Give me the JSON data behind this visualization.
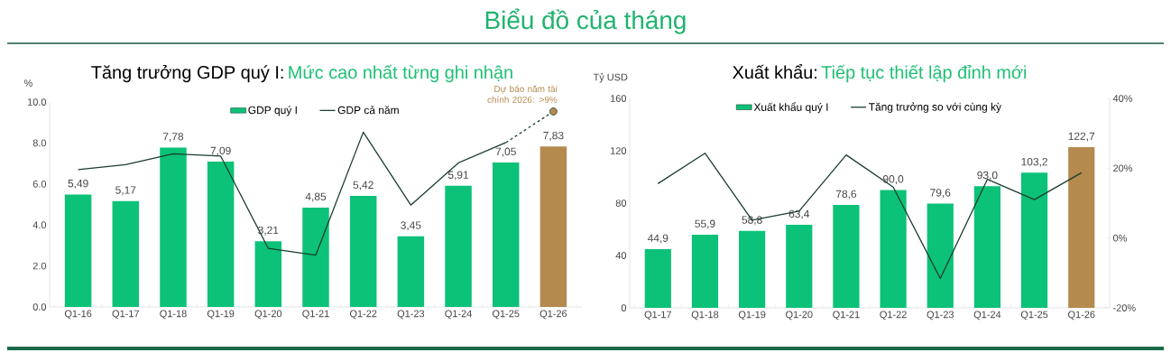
{
  "chart_data": [
    {
      "type": "bar",
      "title": "Tăng trưởng GDP quý I:",
      "subtitle": "Mức cao nhất từng ghi nhận",
      "ylabel": "%",
      "annotations": [
        "Biểu đồ của tháng",
        {
          "text": "Dự báo năm tài chính 2026: >9%",
          "x": "Q1-26",
          "y": 9.54
        }
      ],
      "categories": [
        "Q1-16",
        "Q1-17",
        "Q1-18",
        "Q1-19",
        "Q1-20",
        "Q1-21",
        "Q1-22",
        "Q1-23",
        "Q1-24",
        "Q1-25",
        "Q1-26"
      ],
      "ylim": [
        0,
        10
      ],
      "yticks": [
        {
          "value": 0,
          "label": "0.0"
        },
        {
          "value": 2,
          "label": "2.0"
        },
        {
          "value": 4,
          "label": "4.0"
        },
        {
          "value": 6,
          "label": "6.0"
        },
        {
          "value": 8,
          "label": "8.0"
        },
        {
          "value": 10,
          "label": "10.0"
        }
      ],
      "legend": "top",
      "series": [
        {
          "name": "GDP quý I",
          "colors": [
            "#0cc278",
            "#0cc278",
            "#0cc278",
            "#0cc278",
            "#0cc278",
            "#0cc278",
            "#0cc278",
            "#0cc278",
            "#0cc278",
            "#0cc278",
            "#b58a4e"
          ],
          "values": [
            5.49,
            5.17,
            7.78,
            7.09,
            3.21,
            4.85,
            5.42,
            3.45,
            5.91,
            7.05,
            7.83
          ],
          "value_labels": [
            "5,49",
            "5,17",
            "7,78",
            "7,09",
            "3,21",
            "4,85",
            "5,42",
            "3,45",
            "5,91",
            "7,05",
            "7,83"
          ]
        },
        {
          "type": "line",
          "name": "GDP cả năm",
          "color": "#1a3d2e",
          "values": [
            6.7,
            6.94,
            7.47,
            7.36,
            2.86,
            2.53,
            8.53,
            4.97,
            7.03,
            8.02,
            null
          ]
        },
        {
          "type": "line",
          "color": "#1a3d2e",
          "line_style": "dashed",
          "values": [
            null,
            null,
            null,
            null,
            null,
            null,
            null,
            null,
            null,
            8.02,
            9.54
          ]
        },
        {
          "type": "scatter",
          "color": "#b58a4e",
          "values": [
            null,
            null,
            null,
            null,
            null,
            null,
            null,
            null,
            null,
            null,
            9.54
          ]
        }
      ]
    },
    {
      "type": "bar",
      "title": "Xuất khẩu:",
      "subtitle": "Tiếp tục thiết lập đỉnh mới",
      "ylabel": "Tỷ USD",
      "categories": [
        "Q1-17",
        "Q1-18",
        "Q1-19",
        "Q1-20",
        "Q1-21",
        "Q1-22",
        "Q1-23",
        "Q1-24",
        "Q1-25",
        "Q1-26"
      ],
      "ylim": [
        0,
        160
      ],
      "yticks": [
        0,
        40,
        80,
        120,
        160
      ],
      "y2lim": [
        -20,
        40
      ],
      "y2ticks": [
        {
          "value": -20,
          "label": "-20%"
        },
        {
          "value": 0,
          "label": "0%"
        },
        {
          "value": 20,
          "label": "20%"
        },
        {
          "value": 40,
          "label": "40%"
        }
      ],
      "legend": "top",
      "series": [
        {
          "name": "Xuất khẩu quý I",
          "colors": [
            "#0cc278",
            "#0cc278",
            "#0cc278",
            "#0cc278",
            "#0cc278",
            "#0cc278",
            "#0cc278",
            "#0cc278",
            "#0cc278",
            "#b58a4e"
          ],
          "values": [
            44.9,
            55.9,
            58.8,
            63.4,
            78.6,
            90.0,
            79.6,
            93.0,
            103.2,
            122.7
          ],
          "value_labels": [
            "44,9",
            "55,9",
            "58,8",
            "63,4",
            "78,6",
            "90,0",
            "79,6",
            "93,0",
            "103,2",
            "122,7"
          ]
        },
        {
          "type": "line",
          "name": "Tăng trưởng so với cùng kỳ",
          "color": "#1a3d2e",
          "axis": "y2",
          "values": [
            15.6,
            24.3,
            5.1,
            7.7,
            23.8,
            14.6,
            -11.6,
            16.8,
            11.0,
            18.7
          ]
        }
      ]
    }
  ]
}
